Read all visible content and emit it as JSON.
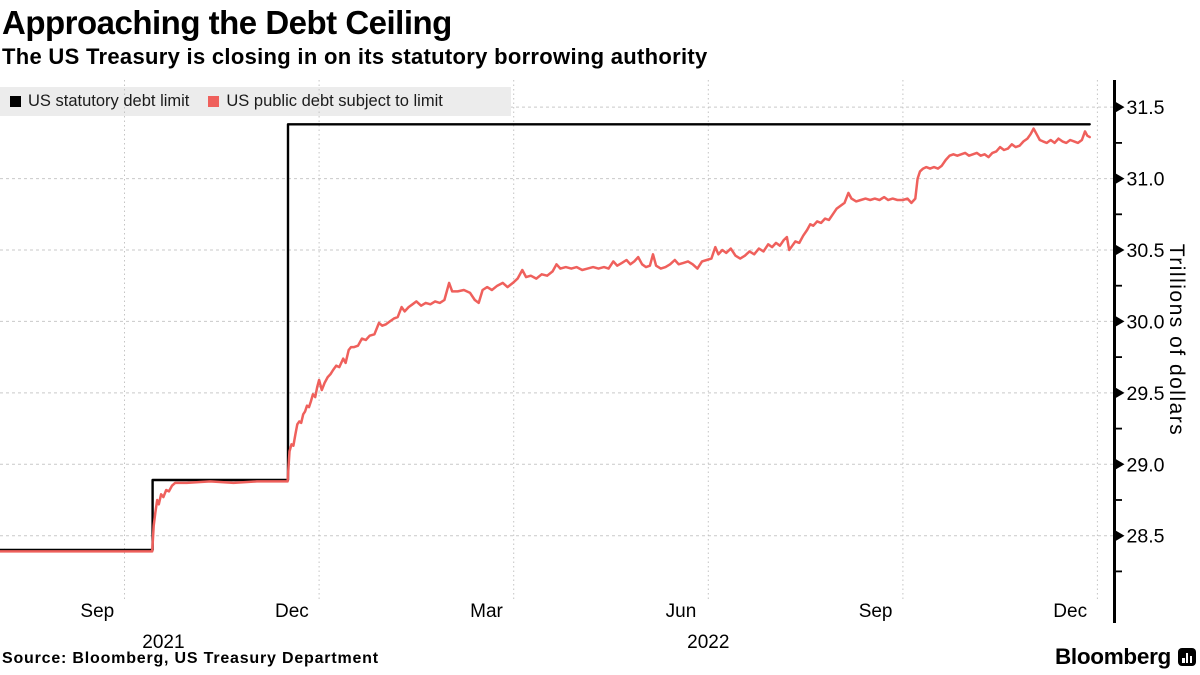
{
  "colors": {
    "red_line": "#ef605c",
    "black_line": "#000000",
    "legend_bg": "#ececec",
    "h_gridline": "#c9c9c9",
    "v_gridline": "#c4c4c4",
    "axis": "#000000"
  },
  "footer": {
    "source": "Source: Bloomberg, US Treasury Department",
    "brand": "Bloomberg",
    "brand_icon": "bar-chart-icon"
  },
  "chart_data": {
    "type": "line",
    "title": "Approaching the Debt Ceiling",
    "subtitle": "The US Treasury is closing in on its statutory borrowing authority",
    "ylabel": "Trillions of dollars",
    "xlabel": "",
    "grid": true,
    "legend_position": "top-left",
    "x_unit": "decimal-year",
    "x_domain": [
      2021.59,
      2023.02
    ],
    "ylim": [
      28.12,
      31.69
    ],
    "y_ticks_major": [
      28.5,
      29.0,
      29.5,
      30.0,
      30.5,
      31.0,
      31.5
    ],
    "y_ticks_minor": [
      28.25,
      28.75,
      29.25,
      29.75,
      30.25,
      30.75,
      31.25
    ],
    "x_gridlines": [
      2021.75,
      2022.0,
      2022.25,
      2022.5,
      2022.75,
      2023.0
    ],
    "x_month_labels": [
      {
        "label": "Sep",
        "date": 2021.715
      },
      {
        "label": "Dec",
        "date": 2021.965
      },
      {
        "label": "Mar",
        "date": 2022.215
      },
      {
        "label": "Jun",
        "date": 2022.465
      },
      {
        "label": "Sep",
        "date": 2022.715
      },
      {
        "label": "Dec",
        "date": 2022.965
      }
    ],
    "x_year_labels": [
      {
        "label": "2021",
        "date": 2021.8
      },
      {
        "label": "2022",
        "date": 2022.5
      }
    ],
    "series": [
      {
        "name": "US statutory debt limit",
        "color": "#000000",
        "width": 2.4,
        "points": [
          [
            2021.59,
            28.4
          ],
          [
            2021.786,
            28.4
          ],
          [
            2021.786,
            28.89
          ],
          [
            2021.96,
            28.89
          ],
          [
            2021.96,
            31.38
          ],
          [
            2022.99,
            31.38
          ]
        ]
      },
      {
        "name": "US public debt subject to limit",
        "color": "#ef605c",
        "width": 2.5,
        "points": [
          [
            2021.59,
            28.39
          ],
          [
            2021.65,
            28.39
          ],
          [
            2021.71,
            28.39
          ],
          [
            2021.77,
            28.39
          ],
          [
            2021.7855,
            28.39
          ],
          [
            2021.7875,
            28.57
          ],
          [
            2021.7895,
            28.66
          ],
          [
            2021.792,
            28.75
          ],
          [
            2021.794,
            28.72
          ],
          [
            2021.797,
            28.79
          ],
          [
            2021.8,
            28.77
          ],
          [
            2021.8035,
            28.82
          ],
          [
            2021.807,
            28.81
          ],
          [
            2021.811,
            28.85
          ],
          [
            2021.815,
            28.87
          ],
          [
            2021.83,
            28.87
          ],
          [
            2021.86,
            28.88
          ],
          [
            2021.89,
            28.87
          ],
          [
            2021.92,
            28.88
          ],
          [
            2021.945,
            28.88
          ],
          [
            2021.9595,
            28.88
          ],
          [
            2021.962,
            29.09
          ],
          [
            2021.9645,
            29.14
          ],
          [
            2021.967,
            29.13
          ],
          [
            2021.9695,
            29.21
          ],
          [
            2021.972,
            29.28
          ],
          [
            2021.9745,
            29.3
          ],
          [
            2021.977,
            29.29
          ],
          [
            2021.9795,
            29.35
          ],
          [
            2021.982,
            29.37
          ],
          [
            2021.9845,
            29.41
          ],
          [
            2021.987,
            29.4
          ],
          [
            2021.9895,
            29.44
          ],
          [
            2021.992,
            29.49
          ],
          [
            2021.995,
            29.47
          ],
          [
            2021.9975,
            29.54
          ],
          [
            2022.0,
            29.59
          ],
          [
            2022.0035,
            29.52
          ],
          [
            2022.007,
            29.57
          ],
          [
            2022.011,
            29.61
          ],
          [
            2022.0145,
            29.63
          ],
          [
            2022.018,
            29.66
          ],
          [
            2022.022,
            29.69
          ],
          [
            2022.026,
            29.68
          ],
          [
            2022.031,
            29.74
          ],
          [
            2022.034,
            29.71
          ],
          [
            2022.038,
            29.8
          ],
          [
            2022.041,
            29.82
          ],
          [
            2022.045,
            29.82
          ],
          [
            2022.05,
            29.83
          ],
          [
            2022.055,
            29.88
          ],
          [
            2022.06,
            29.87
          ],
          [
            2022.065,
            29.9
          ],
          [
            2022.071,
            29.91
          ],
          [
            2022.077,
            29.99
          ],
          [
            2022.081,
            29.97
          ],
          [
            2022.086,
            29.98
          ],
          [
            2022.091,
            30.0
          ],
          [
            2022.096,
            30.02
          ],
          [
            2022.101,
            30.03
          ],
          [
            2022.106,
            30.1
          ],
          [
            2022.11,
            30.07
          ],
          [
            2022.115,
            30.1
          ],
          [
            2022.12,
            30.12
          ],
          [
            2022.125,
            30.14
          ],
          [
            2022.131,
            30.11
          ],
          [
            2022.137,
            30.13
          ],
          [
            2022.143,
            30.12
          ],
          [
            2022.149,
            30.14
          ],
          [
            2022.155,
            30.13
          ],
          [
            2022.161,
            30.15
          ],
          [
            2022.167,
            30.27
          ],
          [
            2022.171,
            30.21
          ],
          [
            2022.178,
            30.21
          ],
          [
            2022.186,
            30.22
          ],
          [
            2022.194,
            30.2
          ],
          [
            2022.2,
            30.15
          ],
          [
            2022.205,
            30.13
          ],
          [
            2022.21,
            30.22
          ],
          [
            2022.216,
            30.24
          ],
          [
            2022.222,
            30.22
          ],
          [
            2022.229,
            30.25
          ],
          [
            2022.236,
            30.27
          ],
          [
            2022.242,
            30.24
          ],
          [
            2022.249,
            30.27
          ],
          [
            2022.255,
            30.3
          ],
          [
            2022.261,
            30.36
          ],
          [
            2022.266,
            30.31
          ],
          [
            2022.272,
            30.32
          ],
          [
            2022.279,
            30.3
          ],
          [
            2022.286,
            30.33
          ],
          [
            2022.293,
            30.32
          ],
          [
            2022.3,
            30.35
          ],
          [
            2022.305,
            30.4
          ],
          [
            2022.31,
            30.37
          ],
          [
            2022.317,
            30.38
          ],
          [
            2022.324,
            30.37
          ],
          [
            2022.331,
            30.38
          ],
          [
            2022.338,
            30.36
          ],
          [
            2022.345,
            30.37
          ],
          [
            2022.352,
            30.38
          ],
          [
            2022.359,
            30.37
          ],
          [
            2022.366,
            30.38
          ],
          [
            2022.372,
            30.37
          ],
          [
            2022.378,
            30.42
          ],
          [
            2022.383,
            30.39
          ],
          [
            2022.389,
            30.41
          ],
          [
            2022.395,
            30.43
          ],
          [
            2022.4,
            30.4
          ],
          [
            2022.405,
            30.42
          ],
          [
            2022.41,
            30.45
          ],
          [
            2022.415,
            30.4
          ],
          [
            2022.42,
            30.38
          ],
          [
            2022.425,
            30.39
          ],
          [
            2022.429,
            30.47
          ],
          [
            2022.433,
            30.39
          ],
          [
            2022.439,
            30.37
          ],
          [
            2022.445,
            30.38
          ],
          [
            2022.451,
            30.4
          ],
          [
            2022.457,
            30.43
          ],
          [
            2022.462,
            30.4
          ],
          [
            2022.468,
            30.41
          ],
          [
            2022.474,
            30.42
          ],
          [
            2022.48,
            30.4
          ],
          [
            2022.486,
            30.37
          ],
          [
            2022.492,
            30.42
          ],
          [
            2022.498,
            30.43
          ],
          [
            2022.504,
            30.44
          ],
          [
            2022.509,
            30.52
          ],
          [
            2022.513,
            30.47
          ],
          [
            2022.518,
            30.5
          ],
          [
            2022.523,
            30.48
          ],
          [
            2022.529,
            30.51
          ],
          [
            2022.535,
            30.46
          ],
          [
            2022.541,
            30.44
          ],
          [
            2022.547,
            30.46
          ],
          [
            2022.553,
            30.49
          ],
          [
            2022.559,
            30.47
          ],
          [
            2022.565,
            30.51
          ],
          [
            2022.571,
            30.49
          ],
          [
            2022.577,
            30.54
          ],
          [
            2022.582,
            30.52
          ],
          [
            2022.587,
            30.55
          ],
          [
            2022.592,
            30.53
          ],
          [
            2022.597,
            30.57
          ],
          [
            2022.601,
            30.59
          ],
          [
            2022.604,
            30.5
          ],
          [
            2022.608,
            30.53
          ],
          [
            2022.612,
            30.56
          ],
          [
            2022.617,
            30.55
          ],
          [
            2022.622,
            30.6
          ],
          [
            2022.627,
            30.64
          ],
          [
            2022.631,
            30.68
          ],
          [
            2022.635,
            30.67
          ],
          [
            2022.64,
            30.7
          ],
          [
            2022.645,
            30.69
          ],
          [
            2022.65,
            30.72
          ],
          [
            2022.655,
            30.71
          ],
          [
            2022.66,
            30.75
          ],
          [
            2022.665,
            30.79
          ],
          [
            2022.67,
            30.81
          ],
          [
            2022.675,
            30.83
          ],
          [
            2022.68,
            30.9
          ],
          [
            2022.684,
            30.86
          ],
          [
            2022.69,
            30.84
          ],
          [
            2022.696,
            30.85
          ],
          [
            2022.702,
            30.86
          ],
          [
            2022.708,
            30.85
          ],
          [
            2022.714,
            30.86
          ],
          [
            2022.72,
            30.85
          ],
          [
            2022.726,
            30.87
          ],
          [
            2022.731,
            30.85
          ],
          [
            2022.737,
            30.86
          ],
          [
            2022.743,
            30.85
          ],
          [
            2022.75,
            30.85
          ],
          [
            2022.756,
            30.86
          ],
          [
            2022.761,
            30.83
          ],
          [
            2022.766,
            30.86
          ],
          [
            2022.769,
            31.0
          ],
          [
            2022.772,
            31.05
          ],
          [
            2022.776,
            31.07
          ],
          [
            2022.78,
            31.08
          ],
          [
            2022.785,
            31.07
          ],
          [
            2022.79,
            31.08
          ],
          [
            2022.795,
            31.07
          ],
          [
            2022.8,
            31.09
          ],
          [
            2022.805,
            31.13
          ],
          [
            2022.81,
            31.16
          ],
          [
            2022.815,
            31.17
          ],
          [
            2022.82,
            31.16
          ],
          [
            2022.825,
            31.17
          ],
          [
            2022.83,
            31.18
          ],
          [
            2022.835,
            31.16
          ],
          [
            2022.84,
            31.17
          ],
          [
            2022.845,
            31.18
          ],
          [
            2022.85,
            31.16
          ],
          [
            2022.855,
            31.17
          ],
          [
            2022.86,
            31.15
          ],
          [
            2022.865,
            31.18
          ],
          [
            2022.87,
            31.19
          ],
          [
            2022.875,
            31.22
          ],
          [
            2022.88,
            31.2
          ],
          [
            2022.885,
            31.21
          ],
          [
            2022.89,
            31.24
          ],
          [
            2022.895,
            31.22
          ],
          [
            2022.9,
            31.23
          ],
          [
            2022.905,
            31.26
          ],
          [
            2022.91,
            31.28
          ],
          [
            2022.914,
            31.31
          ],
          [
            2022.918,
            31.35
          ],
          [
            2022.922,
            31.31
          ],
          [
            2022.926,
            31.27
          ],
          [
            2022.93,
            31.26
          ],
          [
            2022.935,
            31.25
          ],
          [
            2022.94,
            31.27
          ],
          [
            2022.945,
            31.25
          ],
          [
            2022.95,
            31.28
          ],
          [
            2022.955,
            31.26
          ],
          [
            2022.96,
            31.25
          ],
          [
            2022.965,
            31.27
          ],
          [
            2022.97,
            31.26
          ],
          [
            2022.975,
            31.25
          ],
          [
            2022.98,
            31.27
          ],
          [
            2022.984,
            31.33
          ],
          [
            2022.987,
            31.3
          ],
          [
            2022.99,
            31.29
          ]
        ]
      }
    ]
  }
}
